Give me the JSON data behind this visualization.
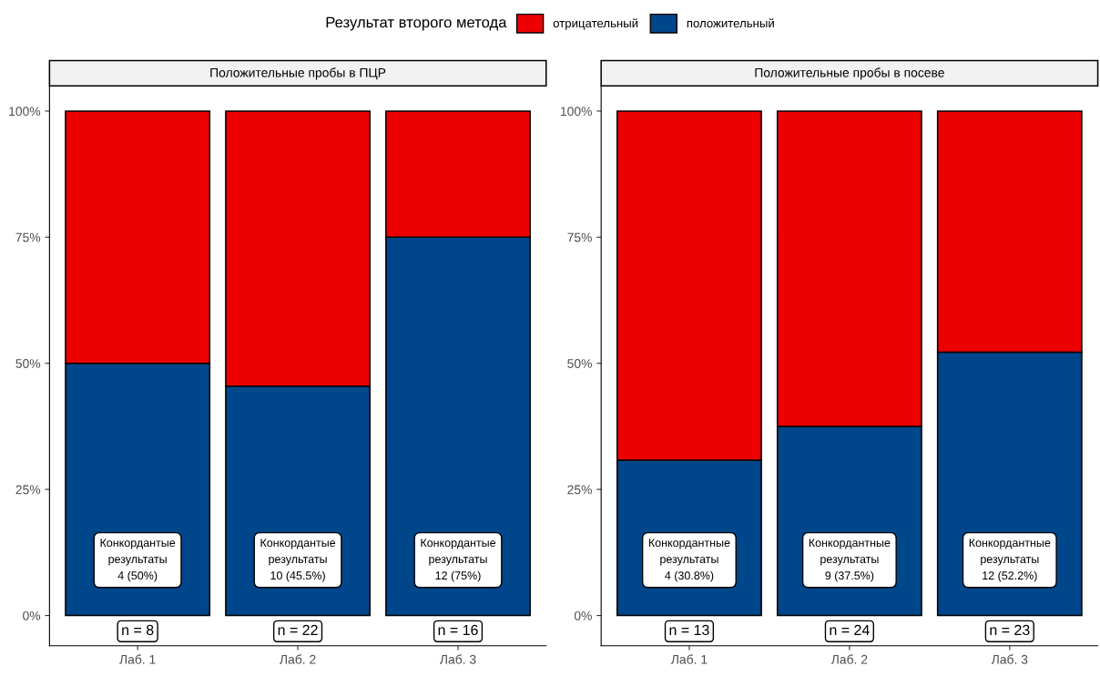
{
  "chart_data": [
    {
      "type": "bar",
      "title": "Положительные пробы в ПЦР",
      "stacked": true,
      "legend": "top",
      "legend_title": "Результат второго метода",
      "categories": [
        "Лаб. 1",
        "Лаб. 2",
        "Лаб. 3"
      ],
      "series": [
        {
          "name": "положительный",
          "color": "#00468b",
          "values": [
            50,
            45.5,
            75
          ]
        },
        {
          "name": "отрицательный",
          "color": "#ed0000",
          "values": [
            50,
            54.5,
            25
          ]
        }
      ],
      "ylim": [
        -6,
        105
      ],
      "yticks": [
        {
          "value": 0,
          "label": "0%"
        },
        {
          "value": 25,
          "label": "25%"
        },
        {
          "value": 50,
          "label": "50%"
        },
        {
          "value": 75,
          "label": "75%"
        },
        {
          "value": 100,
          "label": "100%"
        }
      ],
      "grid": false,
      "annotations": [
        "Конкордантые\nрезультаты\n4 (50%)",
        "Конкордантые\nрезультаты\n10 (45.5%)",
        "Конкордантые\nрезультаты\n12 (75%)",
        "n = 8",
        "n = 22",
        "n = 16"
      ]
    },
    {
      "type": "bar",
      "title": "Положительные пробы в посеве",
      "stacked": true,
      "categories": [
        "Лаб. 1",
        "Лаб. 2",
        "Лаб. 3"
      ],
      "series": [
        {
          "color": "#00468b",
          "values": [
            30.8,
            37.5,
            52.2
          ]
        },
        {
          "color": "#ed0000",
          "values": [
            69.2,
            62.5,
            47.8
          ]
        }
      ],
      "ylim": [
        -6,
        105
      ],
      "yticks": [
        {
          "value": 0,
          "label": "0%"
        },
        {
          "value": 25,
          "label": "25%"
        },
        {
          "value": 50,
          "label": "50%"
        },
        {
          "value": 75,
          "label": "75%"
        },
        {
          "value": 100,
          "label": "100%"
        }
      ],
      "grid": false,
      "annotations": [
        "Конкордантные\nрезультаты\n4 (30.8%)",
        "Конкордантные\nрезультаты\n9 (37.5%)",
        "Конкордантные\nрезультаты\n12 (52.2%)",
        "n = 13",
        "n = 24",
        "n = 23"
      ]
    }
  ]
}
